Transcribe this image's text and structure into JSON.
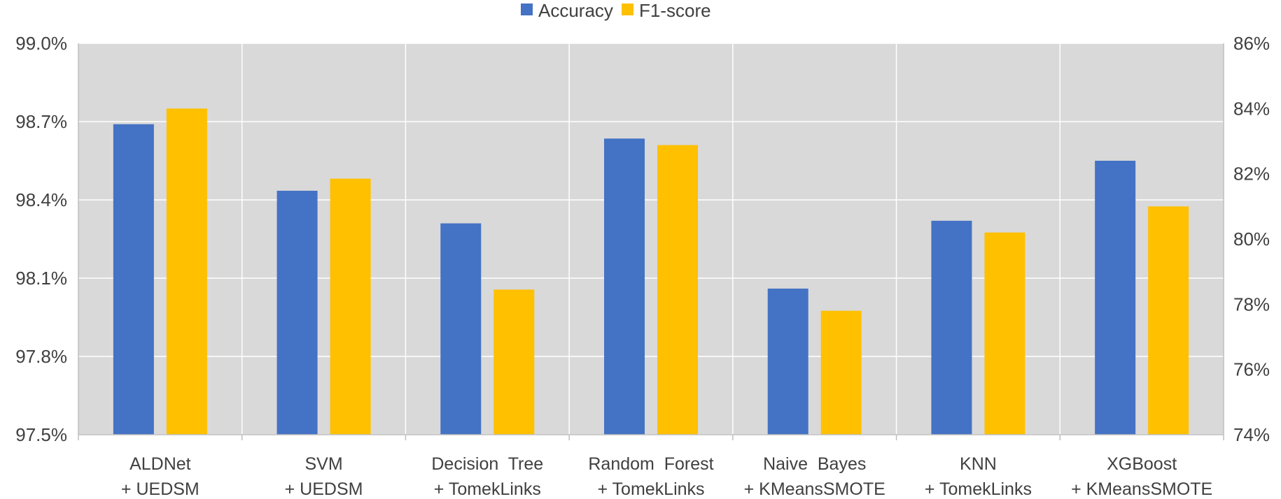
{
  "chart_data": {
    "type": "bar",
    "categories": [
      [
        "ALDNet",
        "+ UEDSM"
      ],
      [
        "SVM",
        "+ UEDSM"
      ],
      [
        "Decision  Tree",
        "+ TomekLinks"
      ],
      [
        "Random  Forest",
        "+ TomekLinks"
      ],
      [
        "Naive  Bayes",
        "+ KMeansSMOTE"
      ],
      [
        "KNN",
        "+ TomekLinks"
      ],
      [
        "XGBoost",
        "+ KMeansSMOTE"
      ]
    ],
    "series": [
      {
        "name": "Accuracy",
        "axis": "left",
        "color": "#4472c4",
        "values": [
          98.69,
          98.435,
          98.31,
          98.635,
          98.06,
          98.32,
          98.55
        ]
      },
      {
        "name": "F1-score",
        "axis": "right",
        "color": "#ffc000",
        "values": [
          84.0,
          81.85,
          78.45,
          82.88,
          77.8,
          80.2,
          81.0
        ]
      }
    ],
    "y_left": {
      "lim": [
        97.5,
        99.0
      ],
      "ticks": [
        "97.5%",
        "97.8%",
        "98.1%",
        "98.4%",
        "98.7%",
        "99.0%"
      ]
    },
    "y_right": {
      "lim": [
        74,
        86
      ],
      "ticks": [
        "74%",
        "76%",
        "78%",
        "80%",
        "82%",
        "84%",
        "86%"
      ]
    },
    "title": "",
    "xlabel": "",
    "ylabel": "",
    "grid": true,
    "legend_position": "top-center",
    "plot_background": "#d9d9d9"
  }
}
